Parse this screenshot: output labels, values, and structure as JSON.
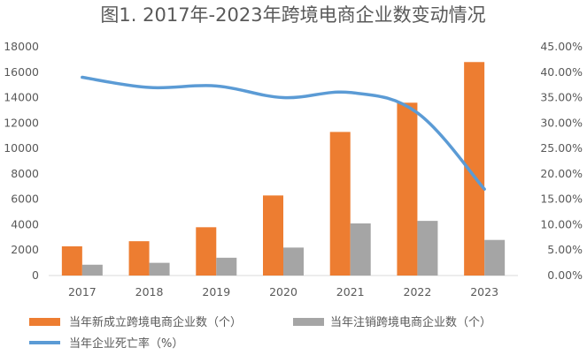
{
  "chart_data": {
    "type": "bar",
    "title": "图1. 2017年-2023年跨境电商企业数变动情况",
    "categories": [
      "2017",
      "2018",
      "2019",
      "2020",
      "2021",
      "2022",
      "2023"
    ],
    "series": [
      {
        "name": "当年新成立跨境电商企业数（个）",
        "type": "bar",
        "axis": "left",
        "color": "#ED7D31",
        "values": [
          2300,
          2700,
          3800,
          6300,
          11300,
          13600,
          16800
        ]
      },
      {
        "name": "当年注销跨境电商企业数（个）",
        "type": "bar",
        "axis": "left",
        "color": "#A5A5A5",
        "values": [
          850,
          1000,
          1400,
          2200,
          4100,
          4300,
          2800
        ]
      },
      {
        "name": "当年企业死亡率（%）",
        "type": "line",
        "axis": "right",
        "color": "#5B9BD5",
        "values": [
          39.0,
          37.0,
          37.3,
          35.0,
          36.0,
          32.0,
          17.0
        ]
      }
    ],
    "ylim_left": [
      0,
      18000
    ],
    "yticks_left": [
      "0",
      "2000",
      "4000",
      "6000",
      "8000",
      "10000",
      "12000",
      "14000",
      "16000",
      "18000"
    ],
    "ylim_right": [
      0,
      45
    ],
    "yticks_right": [
      "0.00%",
      "5.00%",
      "10.00%",
      "15.00%",
      "20.00%",
      "25.00%",
      "30.00%",
      "35.00%",
      "40.00%",
      "45.00%"
    ],
    "grid": false,
    "legend_position": "bottom"
  }
}
